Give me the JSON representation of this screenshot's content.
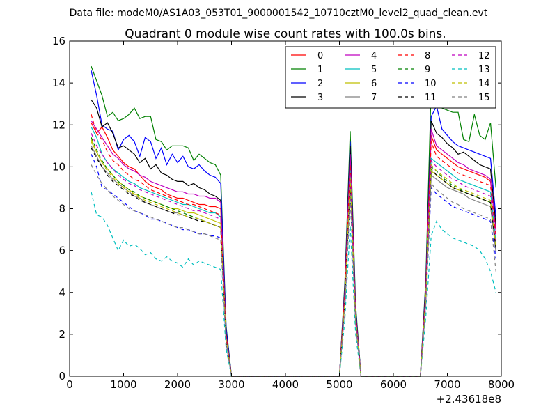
{
  "chart_data": {
    "type": "line",
    "suptitle": "Data file: modeM0/AS1A03_053T01_9000001542_10710cztM0_level2_quad_clean.evt",
    "title": "Quadrant 0 module wise count rates with 100.0s bins.",
    "xlabel": "",
    "ylabel": "",
    "x_offset_label": "+2.43618e8",
    "xlim": [
      0,
      8000
    ],
    "ylim": [
      0,
      16
    ],
    "xticks": [
      0,
      1000,
      2000,
      3000,
      4000,
      5000,
      6000,
      7000,
      8000
    ],
    "yticks": [
      0,
      2,
      4,
      6,
      8,
      10,
      12,
      14,
      16
    ],
    "grid": false,
    "legend_position": "top-right",
    "x": [
      400,
      500,
      600,
      700,
      800,
      900,
      1000,
      1100,
      1200,
      1300,
      1400,
      1500,
      1600,
      1700,
      1800,
      1900,
      2000,
      2100,
      2200,
      2300,
      2400,
      2500,
      2600,
      2700,
      2800,
      2900,
      3000,
      3100,
      4900,
      5000,
      5100,
      5200,
      5300,
      5400,
      5500,
      6400,
      6500,
      6600,
      6700,
      6800,
      6900,
      7000,
      7100,
      7200,
      7300,
      7400,
      7500,
      7600,
      7700,
      7800,
      7900
    ],
    "series": [
      {
        "name": "0",
        "color": "#ff0000",
        "dash": "solid",
        "values": [
          12.1,
          11.6,
          11.9,
          11.4,
          10.8,
          10.5,
          10.2,
          10.0,
          9.9,
          9.6,
          9.3,
          9.1,
          9.0,
          8.9,
          8.7,
          8.6,
          8.5,
          8.5,
          8.4,
          8.3,
          8.2,
          8.2,
          8.1,
          8.1,
          8.0,
          2.0,
          0,
          0,
          0,
          0,
          4.0,
          10.3,
          3.0,
          0,
          0,
          0,
          0,
          4.0,
          11.5,
          10.8,
          10.6,
          10.4,
          10.2,
          10.0,
          9.9,
          9.8,
          9.7,
          9.6,
          9.5,
          9.3,
          7.0
        ]
      },
      {
        "name": "1",
        "color": "#008000",
        "dash": "solid",
        "values": [
          14.8,
          14.1,
          13.4,
          12.4,
          12.6,
          12.2,
          12.3,
          12.5,
          12.8,
          12.3,
          12.4,
          12.4,
          11.3,
          11.2,
          10.8,
          11.0,
          11.0,
          11.0,
          10.9,
          10.3,
          10.6,
          10.4,
          10.2,
          10.1,
          9.6,
          2.4,
          0,
          0,
          0,
          0,
          4.5,
          11.7,
          3.4,
          0,
          0,
          0,
          0,
          4.6,
          13.8,
          13.5,
          12.8,
          12.7,
          12.6,
          12.6,
          11.3,
          11.2,
          12.5,
          11.5,
          11.3,
          12.1,
          9.0
        ]
      },
      {
        "name": "2",
        "color": "#0000ff",
        "dash": "solid",
        "values": [
          14.6,
          13.4,
          12.0,
          11.8,
          11.7,
          10.8,
          11.3,
          11.5,
          11.2,
          10.5,
          11.4,
          11.2,
          10.4,
          10.9,
          10.1,
          10.6,
          10.2,
          10.5,
          10.0,
          9.9,
          10.1,
          9.8,
          9.6,
          9.5,
          9.2,
          2.3,
          0,
          0,
          0,
          0,
          4.3,
          11.2,
          3.2,
          0,
          0,
          0,
          0,
          4.4,
          12.4,
          12.9,
          11.8,
          11.5,
          11.2,
          11.0,
          10.9,
          10.8,
          10.7,
          10.6,
          10.5,
          10.4,
          7.6
        ]
      },
      {
        "name": "3",
        "color": "#000000",
        "dash": "solid",
        "values": [
          13.2,
          12.8,
          11.9,
          12.1,
          11.6,
          10.9,
          11.0,
          10.8,
          10.6,
          10.2,
          10.4,
          9.9,
          10.1,
          9.7,
          9.6,
          9.4,
          9.3,
          9.3,
          9.1,
          9.2,
          9.0,
          8.9,
          8.7,
          8.6,
          8.4,
          2.1,
          0,
          0,
          0,
          0,
          4.2,
          11.0,
          3.1,
          0,
          0,
          0,
          0,
          4.3,
          12.2,
          11.6,
          11.4,
          11.1,
          10.9,
          10.6,
          10.7,
          10.5,
          10.3,
          10.1,
          10.0,
          9.9,
          7.2
        ]
      },
      {
        "name": "4",
        "color": "#bf00bf",
        "dash": "solid",
        "values": [
          12.2,
          11.8,
          11.4,
          11.0,
          10.6,
          10.4,
          10.1,
          9.9,
          9.8,
          9.6,
          9.5,
          9.3,
          9.2,
          9.1,
          9.0,
          8.9,
          8.8,
          8.8,
          8.7,
          8.7,
          8.6,
          8.6,
          8.5,
          8.5,
          8.3,
          2.0,
          0,
          0,
          0,
          0,
          4.1,
          10.6,
          3.0,
          0,
          0,
          0,
          0,
          4.1,
          11.8,
          11.0,
          10.8,
          10.6,
          10.4,
          10.2,
          10.1,
          9.9,
          9.8,
          9.7,
          9.6,
          9.4,
          6.9
        ]
      },
      {
        "name": "5",
        "color": "#00bfbf",
        "dash": "solid",
        "values": [
          11.9,
          11.4,
          10.6,
          10.2,
          9.9,
          9.7,
          9.5,
          9.3,
          9.2,
          9.0,
          8.9,
          8.8,
          8.7,
          8.6,
          8.5,
          8.4,
          8.3,
          8.2,
          8.2,
          8.1,
          8.0,
          7.9,
          7.8,
          7.8,
          7.6,
          1.9,
          0,
          0,
          0,
          0,
          3.8,
          9.9,
          2.8,
          0,
          0,
          0,
          0,
          3.9,
          10.4,
          10.2,
          10.0,
          9.8,
          9.6,
          9.4,
          9.3,
          9.2,
          9.1,
          9.0,
          8.9,
          8.8,
          6.4
        ]
      },
      {
        "name": "6",
        "color": "#bfbf00",
        "dash": "solid",
        "values": [
          11.2,
          10.7,
          10.2,
          9.9,
          9.6,
          9.3,
          9.1,
          8.9,
          8.7,
          8.6,
          8.5,
          8.4,
          8.3,
          8.2,
          8.1,
          8.0,
          8.0,
          7.9,
          7.8,
          7.8,
          7.7,
          7.6,
          7.5,
          7.4,
          7.3,
          1.8,
          0,
          0,
          0,
          0,
          3.6,
          9.4,
          2.7,
          0,
          0,
          0,
          0,
          3.7,
          9.8,
          9.6,
          9.4,
          9.2,
          9.0,
          8.9,
          8.8,
          8.7,
          8.6,
          8.5,
          8.4,
          8.3,
          6.1
        ]
      },
      {
        "name": "7",
        "color": "#808080",
        "dash": "solid",
        "values": [
          11.0,
          10.5,
          10.0,
          9.7,
          9.4,
          9.2,
          9.0,
          8.8,
          8.6,
          8.5,
          8.3,
          8.2,
          8.1,
          8.0,
          7.9,
          7.8,
          7.8,
          7.7,
          7.6,
          7.5,
          7.5,
          7.4,
          7.3,
          7.2,
          7.1,
          1.7,
          0,
          0,
          0,
          0,
          3.5,
          9.2,
          2.6,
          0,
          0,
          0,
          0,
          3.6,
          9.6,
          9.4,
          9.2,
          9.0,
          8.9,
          8.8,
          8.7,
          8.5,
          8.4,
          8.3,
          8.2,
          8.1,
          5.9
        ]
      },
      {
        "name": "8",
        "color": "#ff0000",
        "dash": "dashed",
        "values": [
          12.5,
          11.6,
          11.3,
          10.7,
          10.3,
          10.1,
          9.8,
          9.6,
          9.4,
          9.3,
          9.1,
          8.9,
          8.8,
          8.7,
          8.6,
          8.5,
          8.4,
          8.3,
          8.2,
          8.2,
          8.1,
          8.0,
          7.9,
          7.8,
          7.7,
          1.9,
          0,
          0,
          0,
          0,
          3.9,
          10.1,
          2.9,
          0,
          0,
          0,
          0,
          4.0,
          11.2,
          10.5,
          10.3,
          10.1,
          9.9,
          9.7,
          9.6,
          9.5,
          9.4,
          9.3,
          9.2,
          9.1,
          6.7
        ]
      },
      {
        "name": "9",
        "color": "#008000",
        "dash": "dashed",
        "values": [
          11.4,
          10.8,
          10.3,
          9.9,
          9.6,
          9.3,
          9.1,
          8.9,
          8.8,
          8.6,
          8.5,
          8.4,
          8.3,
          8.2,
          8.1,
          8.0,
          7.9,
          7.8,
          7.7,
          7.6,
          7.5,
          7.4,
          7.3,
          7.2,
          7.1,
          1.8,
          0,
          0,
          0,
          0,
          3.6,
          9.4,
          2.7,
          0,
          0,
          0,
          0,
          3.7,
          10.0,
          9.8,
          9.5,
          9.3,
          9.1,
          9.0,
          8.8,
          8.7,
          8.6,
          8.5,
          8.4,
          8.3,
          6.2
        ]
      },
      {
        "name": "10",
        "color": "#0000ff",
        "dash": "dashed",
        "values": [
          10.6,
          10.0,
          9.0,
          8.9,
          8.7,
          8.5,
          8.3,
          8.1,
          7.9,
          7.8,
          7.7,
          7.5,
          7.5,
          7.4,
          7.3,
          7.2,
          7.1,
          7.0,
          7.0,
          6.9,
          6.8,
          6.8,
          6.7,
          6.7,
          6.6,
          1.6,
          0,
          0,
          0,
          0,
          3.3,
          8.6,
          2.5,
          0,
          0,
          0,
          0,
          3.4,
          9.0,
          8.7,
          8.5,
          8.3,
          8.1,
          8.0,
          7.9,
          7.8,
          7.7,
          7.6,
          7.5,
          7.4,
          5.6
        ]
      },
      {
        "name": "11",
        "color": "#000000",
        "dash": "dashed",
        "values": [
          10.9,
          10.4,
          10.0,
          9.6,
          9.3,
          9.1,
          8.9,
          8.7,
          8.6,
          8.4,
          8.3,
          8.2,
          8.1,
          8.0,
          7.9,
          7.8,
          7.7,
          7.7,
          7.6,
          7.5,
          7.4,
          7.4,
          7.3,
          7.2,
          7.1,
          1.8,
          0,
          0,
          0,
          0,
          3.6,
          9.3,
          2.7,
          0,
          0,
          0,
          0,
          3.7,
          9.9,
          9.6,
          9.4,
          9.2,
          9.0,
          8.9,
          8.8,
          8.7,
          8.6,
          8.5,
          8.4,
          8.3,
          6.1
        ]
      },
      {
        "name": "12",
        "color": "#bf00bf",
        "dash": "dashed",
        "values": [
          11.6,
          11.0,
          10.6,
          10.2,
          9.9,
          9.6,
          9.4,
          9.2,
          9.1,
          8.9,
          8.8,
          8.7,
          8.6,
          8.5,
          8.4,
          8.3,
          8.2,
          8.1,
          8.0,
          7.9,
          7.9,
          7.8,
          7.7,
          7.6,
          7.5,
          1.9,
          0,
          0,
          0,
          0,
          3.7,
          9.7,
          2.8,
          0,
          0,
          0,
          0,
          3.8,
          10.3,
          10.0,
          9.8,
          9.6,
          9.4,
          9.3,
          9.1,
          9.0,
          8.9,
          8.8,
          8.7,
          8.6,
          6.4
        ]
      },
      {
        "name": "13",
        "color": "#00bfbf",
        "dash": "dashed",
        "values": [
          8.8,
          7.7,
          7.6,
          7.2,
          6.6,
          6.0,
          6.5,
          6.2,
          6.3,
          6.1,
          5.8,
          5.9,
          5.6,
          5.5,
          5.7,
          5.5,
          5.4,
          5.2,
          5.6,
          5.3,
          5.5,
          5.4,
          5.3,
          5.2,
          5.1,
          1.3,
          0,
          0,
          0,
          0,
          2.7,
          7.2,
          2.0,
          0,
          0,
          0,
          0,
          2.8,
          6.7,
          7.4,
          7.0,
          6.8,
          6.6,
          6.5,
          6.4,
          6.3,
          6.2,
          6.0,
          5.6,
          5.0,
          4.0
        ]
      },
      {
        "name": "14",
        "color": "#bfbf00",
        "dash": "dashed",
        "values": [
          11.3,
          10.7,
          10.2,
          9.8,
          9.5,
          9.2,
          9.0,
          8.8,
          8.7,
          8.5,
          8.4,
          8.3,
          8.2,
          8.1,
          8.0,
          7.9,
          7.8,
          7.7,
          7.6,
          7.6,
          7.5,
          7.4,
          7.3,
          7.2,
          7.1,
          1.8,
          0,
          0,
          0,
          0,
          3.6,
          9.5,
          2.7,
          0,
          0,
          0,
          0,
          3.7,
          10.1,
          9.8,
          9.6,
          9.4,
          9.2,
          9.0,
          8.9,
          8.8,
          8.7,
          8.6,
          8.5,
          8.4,
          6.2
        ]
      },
      {
        "name": "15",
        "color": "#808080",
        "dash": "dashed",
        "values": [
          10.1,
          9.6,
          9.2,
          8.9,
          8.6,
          8.4,
          8.2,
          8.0,
          7.9,
          7.8,
          7.7,
          7.6,
          7.5,
          7.4,
          7.3,
          7.2,
          7.1,
          7.1,
          7.0,
          6.9,
          6.8,
          6.8,
          6.7,
          6.6,
          6.5,
          1.6,
          0,
          0,
          0,
          0,
          3.3,
          8.6,
          2.5,
          0,
          0,
          0,
          0,
          3.4,
          9.2,
          8.9,
          8.7,
          8.5,
          8.3,
          8.2,
          8.0,
          7.9,
          7.8,
          7.7,
          7.6,
          7.5,
          5.0
        ]
      }
    ]
  }
}
